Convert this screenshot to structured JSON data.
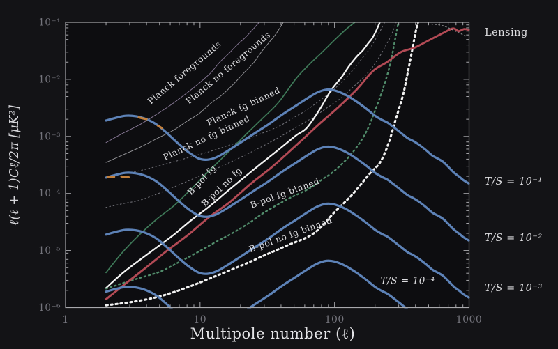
{
  "figure": {
    "bg": "#131316",
    "plot_bg": "#0d0d10",
    "frame_color": "#a8a8ac",
    "tick_color": "#a8a8ac",
    "accent_blue": "#5d82b7",
    "accent_red": "#b24a55",
    "accent_green": "#3f7a59",
    "accent_white": "#f2f2f2",
    "accent_orange": "#c4813d"
  },
  "axes": {
    "x": {
      "title": "Multipole number (ℓ)",
      "scale": "log",
      "min": 1,
      "max": 1000,
      "tick_labels": [
        "1",
        "10",
        "100",
        "1000"
      ]
    },
    "y": {
      "title": "ℓ(ℓ + 1)Cℓ/2π  [μK²]",
      "scale": "log",
      "min": 1e-06,
      "max": 0.1,
      "tick_labels": [
        "10⁻¹",
        "10⁻²",
        "10⁻³",
        "10⁻⁴",
        "10⁻⁵",
        "10⁻⁶"
      ]
    }
  },
  "chart_data": {
    "type": "line",
    "xscale": "log",
    "yscale": "log",
    "xlim": [
      1,
      1000
    ],
    "ylim": [
      1e-06,
      0.1
    ],
    "grid": false,
    "bmode_template_points": [
      [
        2,
        0.0019
      ],
      [
        2.33,
        0.0021
      ],
      [
        2.79,
        0.0023
      ],
      [
        3.34,
        0.00225
      ],
      [
        4.0,
        0.002
      ],
      [
        4.78,
        0.0016
      ],
      [
        5.7,
        0.00113
      ],
      [
        6.84,
        0.00076
      ],
      [
        8.2,
        0.00053
      ],
      [
        9.76,
        0.00041
      ],
      [
        11.3,
        0.00039
      ],
      [
        13.2,
        0.00043
      ],
      [
        15.7,
        0.00054
      ],
      [
        20,
        0.00078
      ],
      [
        25.4,
        0.00113
      ],
      [
        32.3,
        0.00163
      ],
      [
        41,
        0.00243
      ],
      [
        52.1,
        0.0035
      ],
      [
        64,
        0.0048
      ],
      [
        74.5,
        0.0059
      ],
      [
        87,
        0.0066
      ],
      [
        100,
        0.0064
      ],
      [
        120,
        0.0054
      ],
      [
        143,
        0.0042
      ],
      [
        171,
        0.0031
      ],
      [
        200,
        0.0023
      ],
      [
        225,
        0.00195
      ],
      [
        247,
        0.00175
      ],
      [
        273,
        0.00147
      ],
      [
        309,
        0.00117
      ],
      [
        350,
        0.00093
      ],
      [
        385,
        0.00083
      ],
      [
        430,
        0.0007
      ],
      [
        485,
        0.00056
      ],
      [
        534,
        0.00046
      ],
      [
        584,
        0.00041
      ],
      [
        640,
        0.00036
      ],
      [
        714,
        0.00028
      ],
      [
        775,
        0.00023
      ],
      [
        850,
        0.000195
      ],
      [
        911,
        0.00017
      ],
      [
        995,
        0.00015
      ]
    ],
    "series": [
      {
        "id": "planck-foregrounds",
        "label": "Planck foregrounds",
        "color": "#8d7d9c",
        "width": 1.0,
        "dash": null,
        "opacity": 0.95,
        "points": [
          [
            2,
            0.00078
          ],
          [
            2.6,
            0.0011
          ],
          [
            3.55,
            0.0016
          ],
          [
            4.7,
            0.0024
          ],
          [
            6.1,
            0.0036
          ],
          [
            8,
            0.0058
          ],
          [
            9.8,
            0.0085
          ],
          [
            12,
            0.013
          ],
          [
            14,
            0.02
          ],
          [
            16.5,
            0.029
          ],
          [
            18.8,
            0.04
          ],
          [
            21.5,
            0.053
          ],
          [
            23.9,
            0.069
          ],
          [
            26,
            0.086
          ],
          [
            28.3,
            0.108
          ]
        ]
      },
      {
        "id": "planck-no-foregrounds",
        "label": "Planck no foregrounds",
        "color": "#a9a9ad",
        "width": 0.9,
        "dash": null,
        "opacity": 0.9,
        "points": [
          [
            2,
            0.00035
          ],
          [
            2.7,
            0.00048
          ],
          [
            3.55,
            0.00064
          ],
          [
            4.8,
            0.00092
          ],
          [
            6.4,
            0.0013
          ],
          [
            8,
            0.00185
          ],
          [
            9.8,
            0.0025
          ],
          [
            12,
            0.0038
          ],
          [
            14.8,
            0.0055
          ],
          [
            18,
            0.0086
          ],
          [
            21.2,
            0.013
          ],
          [
            25,
            0.0195
          ],
          [
            28.5,
            0.03
          ],
          [
            32.5,
            0.044
          ],
          [
            36.2,
            0.06
          ],
          [
            39.5,
            0.082
          ],
          [
            42.4,
            0.108
          ]
        ]
      },
      {
        "id": "planck-fg-binned",
        "label": "Planck fg binned",
        "color": "#97979f",
        "width": 1.1,
        "dash": "1.6 3.6",
        "opacity": 0.7,
        "points": [
          [
            2,
            0.00019
          ],
          [
            2.65,
            0.00022
          ],
          [
            3.55,
            0.00025
          ],
          [
            4.8,
            0.0003
          ],
          [
            6.4,
            0.00036
          ],
          [
            8.6,
            0.00044
          ],
          [
            11.7,
            0.00054
          ],
          [
            15.8,
            0.00068
          ],
          [
            21.2,
            0.00085
          ],
          [
            28.7,
            0.00113
          ],
          [
            38.5,
            0.0015
          ],
          [
            49,
            0.0021
          ],
          [
            62,
            0.0029
          ],
          [
            77,
            0.0042
          ],
          [
            94,
            0.006
          ],
          [
            113,
            0.009
          ],
          [
            135,
            0.014
          ],
          [
            157,
            0.022
          ],
          [
            182,
            0.034
          ],
          [
            200,
            0.049
          ],
          [
            218,
            0.07
          ],
          [
            240,
            0.108
          ]
        ]
      },
      {
        "id": "planck-no-fg-binned",
        "label": "Planck no fg binned",
        "color": "#97979f",
        "width": 1.1,
        "dash": "1.6 3.6",
        "opacity": 0.7,
        "points": [
          [
            2,
            5.7e-05
          ],
          [
            2.65,
            6.6e-05
          ],
          [
            3.55,
            7.6e-05
          ],
          [
            4.8,
            9.8e-05
          ],
          [
            6.4,
            0.00013
          ],
          [
            8.6,
            0.000175
          ],
          [
            11.7,
            0.00024
          ],
          [
            15.8,
            0.00033
          ],
          [
            21.2,
            0.00046
          ],
          [
            28.7,
            0.00066
          ],
          [
            38.5,
            0.00096
          ],
          [
            52,
            0.00145
          ],
          [
            70,
            0.0022
          ],
          [
            90,
            0.0033
          ],
          [
            113,
            0.0048
          ],
          [
            136,
            0.0072
          ],
          [
            162,
            0.0105
          ],
          [
            190,
            0.016
          ],
          [
            218,
            0.026
          ],
          [
            240,
            0.039
          ],
          [
            262,
            0.057
          ],
          [
            291,
            0.108
          ]
        ]
      },
      {
        "id": "bpol-fg",
        "label": "B-pol fg",
        "color": "#3f7a59",
        "width": 1.7,
        "dash": null,
        "opacity": 1,
        "points": [
          [
            2,
            4.1e-06
          ],
          [
            2.65,
            9.3e-06
          ],
          [
            3.55,
            1.9e-05
          ],
          [
            4.8,
            3.6e-05
          ],
          [
            6.4,
            6.1e-05
          ],
          [
            8.6,
            0.00012
          ],
          [
            11.7,
            0.00025
          ],
          [
            15.8,
            0.0005
          ],
          [
            21.2,
            0.001
          ],
          [
            28.7,
            0.002
          ],
          [
            38.5,
            0.004
          ],
          [
            52,
            0.0105
          ],
          [
            66,
            0.019
          ],
          [
            81,
            0.03
          ],
          [
            100,
            0.049
          ],
          [
            123,
            0.077
          ],
          [
            148,
            0.108
          ]
        ]
      },
      {
        "id": "bpol-no-fg",
        "label": "B-pol no fg",
        "color": "#f2f2f2",
        "width": 2.3,
        "dash": null,
        "opacity": 1,
        "points": [
          [
            2,
            2.2e-06
          ],
          [
            2.65,
            4e-06
          ],
          [
            3.55,
            6.8e-06
          ],
          [
            4.8,
            1.15e-05
          ],
          [
            6.4,
            1.9e-05
          ],
          [
            8.6,
            3.4e-05
          ],
          [
            11.7,
            5.9e-05
          ],
          [
            15.8,
            0.000107
          ],
          [
            21.2,
            0.00019
          ],
          [
            28.7,
            0.00034
          ],
          [
            38.5,
            0.00059
          ],
          [
            52,
            0.00105
          ],
          [
            62,
            0.0014
          ],
          [
            77,
            0.0029
          ],
          [
            94,
            0.0064
          ],
          [
            113,
            0.011
          ],
          [
            128,
            0.017
          ],
          [
            146,
            0.025
          ],
          [
            162,
            0.032
          ],
          [
            178,
            0.043
          ],
          [
            190,
            0.052
          ],
          [
            205,
            0.073
          ],
          [
            220,
            0.108
          ]
        ]
      },
      {
        "id": "bpol-fg-binned",
        "label": "B-pol fg binned",
        "color": "#518c6b",
        "width": 2.4,
        "dash": "2 4.4",
        "opacity": 1,
        "points": [
          [
            2,
            2.15e-06
          ],
          [
            2.7,
            2.7e-06
          ],
          [
            3.4,
            3.2e-06
          ],
          [
            5.1,
            4.3e-06
          ],
          [
            7,
            6.3e-06
          ],
          [
            9.4,
            9.1e-06
          ],
          [
            13,
            1.4e-05
          ],
          [
            17.3,
            2e-05
          ],
          [
            23,
            3e-05
          ],
          [
            30.3,
            4.7e-05
          ],
          [
            45,
            8e-05
          ],
          [
            64,
            0.00012
          ],
          [
            82,
            0.00018
          ],
          [
            100,
            0.00025
          ],
          [
            135,
            0.00051
          ],
          [
            172,
            0.0012
          ],
          [
            204,
            0.0032
          ],
          [
            236,
            0.0085
          ],
          [
            261,
            0.02
          ],
          [
            280,
            0.046
          ],
          [
            300,
            0.108
          ]
        ]
      },
      {
        "id": "bpol-no-fg-binned",
        "label": "B-pol no fg binned",
        "color": "#f2f2f2",
        "width": 3.1,
        "dash": "2.4 4.6",
        "opacity": 1,
        "points": [
          [
            2,
            1.1e-06
          ],
          [
            3.15,
            1.26e-06
          ],
          [
            5.07,
            1.58e-06
          ],
          [
            8.2,
            2.3e-06
          ],
          [
            13.2,
            3.6e-06
          ],
          [
            21.2,
            5.7e-06
          ],
          [
            30,
            8.2e-06
          ],
          [
            43.4,
            1.2e-05
          ],
          [
            70,
            2e-05
          ],
          [
            100,
            4.7e-05
          ],
          [
            135,
            9.5e-05
          ],
          [
            182,
            0.00022
          ],
          [
            218,
            0.00035
          ],
          [
            251,
            0.00074
          ],
          [
            287,
            0.0021
          ],
          [
            324,
            0.0055
          ],
          [
            354,
            0.015
          ],
          [
            380,
            0.035
          ],
          [
            402,
            0.07
          ],
          [
            422,
            0.108
          ]
        ]
      },
      {
        "id": "lensing",
        "label": "Lensing",
        "color": "#b24a55",
        "width": 2.9,
        "dash": null,
        "opacity": 1,
        "points": [
          [
            2,
            1.4e-06
          ],
          [
            3,
            3e-06
          ],
          [
            4,
            5.1e-06
          ],
          [
            5.7,
            1e-05
          ],
          [
            8.2,
            1.9e-05
          ],
          [
            11.6,
            3.8e-05
          ],
          [
            16.7,
            7.1e-05
          ],
          [
            24,
            0.00015
          ],
          [
            34.2,
            0.00029
          ],
          [
            46,
            0.00054
          ],
          [
            58,
            0.00089
          ],
          [
            78,
            0.0017
          ],
          [
            106,
            0.0032
          ],
          [
            144,
            0.0064
          ],
          [
            193,
            0.014
          ],
          [
            245,
            0.02
          ],
          [
            311,
            0.03
          ],
          [
            394,
            0.036
          ],
          [
            500,
            0.048
          ],
          [
            634,
            0.064
          ],
          [
            758,
            0.078
          ],
          [
            836,
            0.07
          ],
          [
            914,
            0.076
          ],
          [
            995,
            0.074
          ]
        ]
      },
      {
        "id": "ts-1e-1",
        "label": "T/S = 10⁻¹",
        "color": "#5d82b7",
        "width": 3.2,
        "dash": null,
        "opacity": 1,
        "template": true,
        "value_scale": 1
      },
      {
        "id": "ts-1e-2",
        "label": "T/S = 10⁻²",
        "color": "#5d82b7",
        "width": 3.2,
        "dash": null,
        "opacity": 1,
        "template": true,
        "value_scale": 0.1
      },
      {
        "id": "ts-1e-3",
        "label": "T/S = 10⁻³",
        "color": "#5d82b7",
        "width": 3.2,
        "dash": null,
        "opacity": 1,
        "template": true,
        "value_scale": 0.01
      },
      {
        "id": "ts-1e-4",
        "label": "T/S = 10⁻⁴",
        "color": "#5d82b7",
        "width": 3.2,
        "dash": null,
        "opacity": 1,
        "template": true,
        "value_scale": 0.001
      },
      {
        "id": "dotted-top-right",
        "label": "",
        "color": "#d8d8d8",
        "width": 1.4,
        "dash": "1.5 3.5",
        "opacity": 0.55,
        "points": [
          [
            528,
            0.093
          ],
          [
            641,
            0.087
          ],
          [
            813,
            0.068
          ],
          [
            953,
            0.057
          ]
        ]
      }
    ],
    "marker_segments": [
      {
        "color": "#c4813d",
        "width": 3,
        "points": [
          [
            3.5,
            0.00215
          ],
          [
            4.0,
            0.002
          ]
        ]
      },
      {
        "color": "#c4813d",
        "width": 3,
        "points": [
          [
            4.85,
            0.00155
          ],
          [
            5.2,
            0.0014
          ]
        ]
      },
      {
        "color": "#c4813d",
        "width": 3,
        "points": [
          [
            2.05,
            0.000192
          ],
          [
            2.3,
            0.000196
          ]
        ]
      },
      {
        "color": "#c4813d",
        "width": 3,
        "points": [
          [
            2.6,
            0.000198
          ],
          [
            2.95,
            0.000192
          ]
        ]
      }
    ],
    "annotations": [
      {
        "text": "Planck foregrounds",
        "x": 7.9,
        "y": 0.012,
        "rot": -40,
        "style": "roman"
      },
      {
        "text": "Planck no foregrounds",
        "x": 16.7,
        "y": 0.0145,
        "rot": -40,
        "style": "roman"
      },
      {
        "text": "Planck fg binned",
        "x": 21.5,
        "y": 0.003,
        "rot": -25,
        "style": "roman"
      },
      {
        "text": "Planck no fg binned",
        "x": 11.4,
        "y": 0.00085,
        "rot": -25,
        "style": "roman"
      },
      {
        "text": "B-pol fg",
        "x": 10.7,
        "y": 0.00016,
        "rot": -47,
        "style": "roman"
      },
      {
        "text": "B-pol no fg",
        "x": 15,
        "y": 0.00012,
        "rot": -44,
        "style": "roman"
      },
      {
        "text": "B-pol fg binned",
        "x": 43.5,
        "y": 9.1e-05,
        "rot": -20,
        "style": "roman"
      },
      {
        "text": "B-pol no fg binned",
        "x": 47.9,
        "y": 1.7e-05,
        "rot": -20,
        "style": "roman"
      },
      {
        "text": "T/S = 10⁻⁴",
        "x": 350,
        "y": 2.6e-06,
        "rot": 0,
        "style": "math"
      }
    ],
    "side_labels": [
      {
        "text": "Lensing",
        "y": 0.068,
        "style": "roman"
      },
      {
        "text": "T/S = 10⁻¹",
        "y": 0.00017,
        "style": "math"
      },
      {
        "text": "T/S = 10⁻²",
        "y": 1.7e-05,
        "style": "math"
      },
      {
        "text": "T/S = 10⁻³",
        "y": 2.2e-06,
        "style": "math"
      }
    ]
  }
}
